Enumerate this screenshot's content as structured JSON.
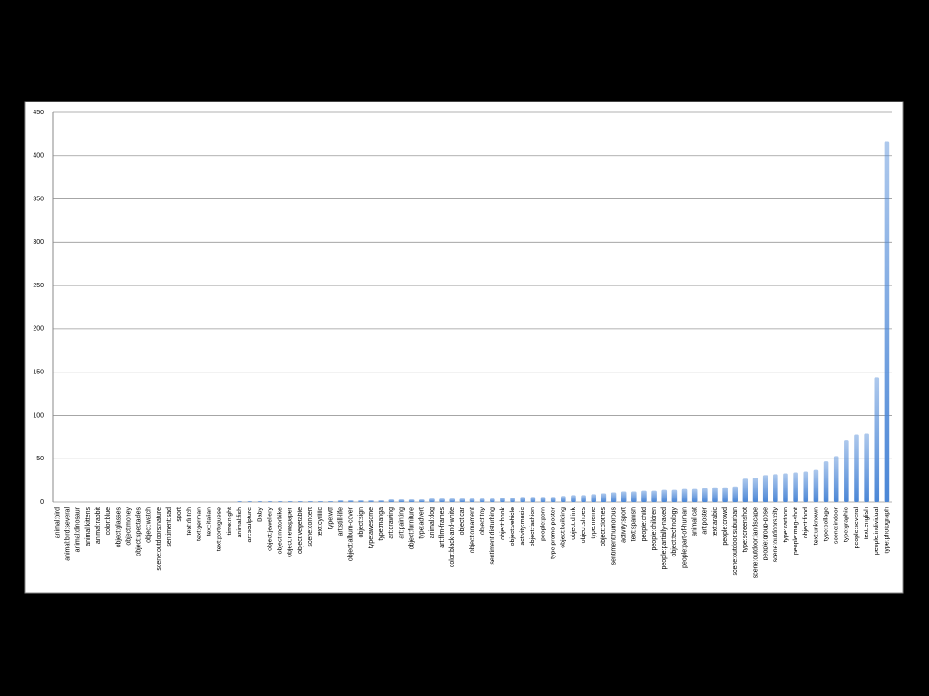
{
  "chart_data": {
    "type": "bar",
    "categories": [
      "animal:bird",
      "animal:bird:several",
      "animal:dinosaur",
      "animal:kittens",
      "animal:rabbit",
      "color:blue",
      "object:glasses",
      "object:money",
      "object:spectacles",
      "object:watch",
      "scene:outdoors:nature",
      "sentiment:sad",
      "sport",
      "text:dutch",
      "text:german",
      "text:italian",
      "text:portuguese",
      "time:night",
      "animal:fish",
      "art:sculpture",
      "Baby",
      "object:jewellery",
      "object:motorbike",
      "object:newspaper",
      "object:vegetable",
      "scene:concert",
      "text:cyrillic",
      "type:wtf",
      "art:still-life",
      "object:album-cover",
      "object:sign",
      "type:awesome",
      "type:manga",
      "art:drawing",
      "art:painting",
      "object:furniture",
      "type:advert",
      "animal:dog",
      "art:film-frames",
      "color:black-and-white",
      "object:car",
      "object:ornament",
      "object:toy",
      "sentiment:disturbing",
      "object:book",
      "object:vehicle",
      "activity:music",
      "object:fashion",
      "people:porn",
      "type:promo-poster",
      "object:building",
      "object:drink",
      "object:shoes",
      "type:meme",
      "object:clothes",
      "sentiment:humorous",
      "activity:sport",
      "text:spanish",
      "people:child",
      "people:children",
      "people:partially-naked",
      "object:technology",
      "people:part-of-human",
      "animal:cat",
      "art:poster",
      "text:arabic",
      "people:crowd",
      "scene:outdoor:suburban",
      "type:screenshot",
      "scene:outdoor:landscape",
      "people:group-pose",
      "scene:outdoors:city",
      "type:cartoon",
      "people:mug-shot",
      "object:food",
      "text:unknown",
      "type:collage",
      "scene:indoor",
      "type:graphic",
      "people:several",
      "text:english",
      "people:individual",
      "type:photograph"
    ],
    "values": [
      0,
      0,
      0,
      0,
      0,
      0,
      0,
      0,
      0,
      0,
      0,
      0,
      0,
      0,
      0,
      0,
      0,
      0,
      1,
      1,
      1,
      1,
      1,
      1,
      1,
      1,
      1,
      1,
      2,
      2,
      2,
      2,
      2,
      3,
      3,
      3,
      3,
      4,
      4,
      4,
      4,
      4,
      4,
      4,
      5,
      5,
      6,
      6,
      6,
      6,
      7,
      8,
      8,
      9,
      10,
      11,
      12,
      12,
      13,
      13,
      14,
      14,
      15,
      15,
      16,
      17,
      17,
      18,
      27,
      28,
      31,
      32,
      33,
      34,
      35,
      37,
      47,
      53,
      71,
      78,
      79,
      144,
      416
    ],
    "color": "#4a86d6",
    "ylim": [
      0,
      450
    ],
    "yticks": [
      0,
      50,
      100,
      150,
      200,
      250,
      300,
      350,
      400,
      450
    ],
    "grid": true
  }
}
